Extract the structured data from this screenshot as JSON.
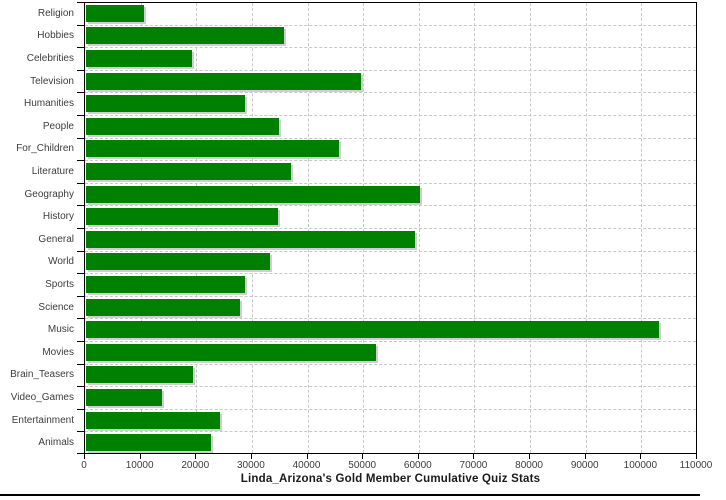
{
  "chart_data": {
    "type": "bar",
    "orientation": "horizontal",
    "title": "Linda_Arizona's Gold Member Cumulative Quiz Stats",
    "categories": [
      "Religion",
      "Hobbies",
      "Celebrities",
      "Television",
      "Humanities",
      "People",
      "For_Children",
      "Literature",
      "Geography",
      "History",
      "General",
      "World",
      "Sports",
      "Science",
      "Music",
      "Movies",
      "Brain_Teasers",
      "Video_Games",
      "Entertainment",
      "Animals"
    ],
    "values": [
      10500,
      35500,
      19000,
      49400,
      28600,
      34700,
      45400,
      36900,
      60000,
      34500,
      59100,
      33100,
      28500,
      27700,
      103000,
      52100,
      19200,
      13700,
      24000,
      22400
    ],
    "xlabel": "",
    "ylabel": "",
    "xlim": [
      0,
      110000
    ],
    "x_ticks": [
      0,
      10000,
      20000,
      30000,
      40000,
      50000,
      60000,
      70000,
      80000,
      90000,
      100000,
      110000
    ],
    "grid": "dashed, vertical at every x tick and horizontal at category boundaries",
    "legend": "none",
    "bar_color": "#008000",
    "bar_shadow_color": "#cfcfcf",
    "gridline_color": "#c8c8c8",
    "axis_color": "#000000",
    "label_color": "#3d3d3d"
  }
}
